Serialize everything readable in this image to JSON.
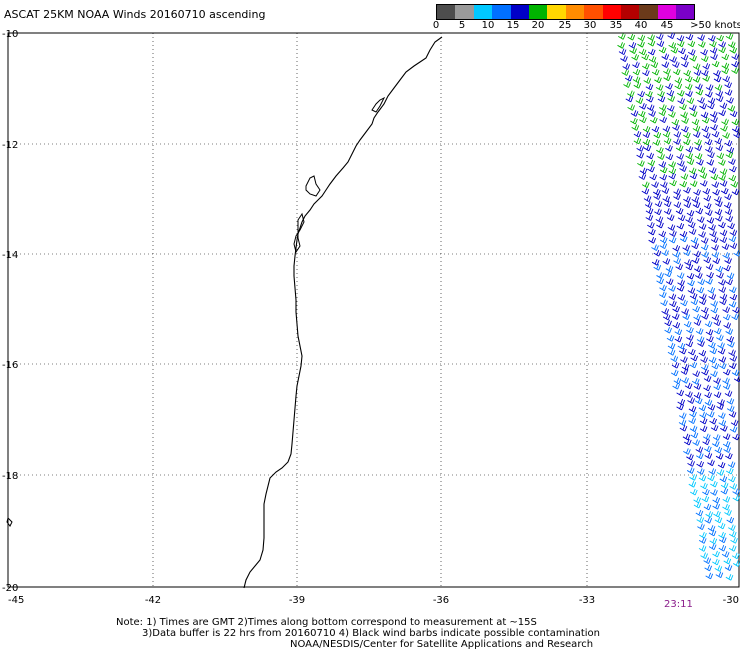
{
  "title": "ASCAT 25KM NOAA Winds 20160710 ascending",
  "legend": {
    "labels": [
      "0",
      "5",
      "10",
      "15",
      "20",
      "25",
      "30",
      "35",
      "40",
      "45",
      ">50 knots"
    ],
    "colors": [
      "#4d4d4d",
      "#9a9a9a",
      "#00c8ff",
      "#0070ff",
      "#0000c8",
      "#00b400",
      "#ffd700",
      "#ff8c00",
      "#ff5000",
      "#ff0000",
      "#b40000",
      "#6b3a1a",
      "#e000e0",
      "#7a00c8"
    ]
  },
  "axes": {
    "lon_ticks": [
      "-45",
      "-42",
      "-39",
      "-36",
      "-33",
      "-30"
    ],
    "lat_ticks": [
      "-10",
      "-12",
      "-14",
      "-16",
      "-18",
      "-20"
    ]
  },
  "timestamp": "23:11",
  "notes": {
    "line1": "Note: 1) Times are GMT 2)Times along bottom correspond to measurement at ~15S",
    "line2": "3)Data buffer is 22 hrs from 20160710 4) Black wind barbs indicate possible contamination",
    "line3": "NOAA/NESDIS/Center for Satellite Applications and Research"
  }
}
